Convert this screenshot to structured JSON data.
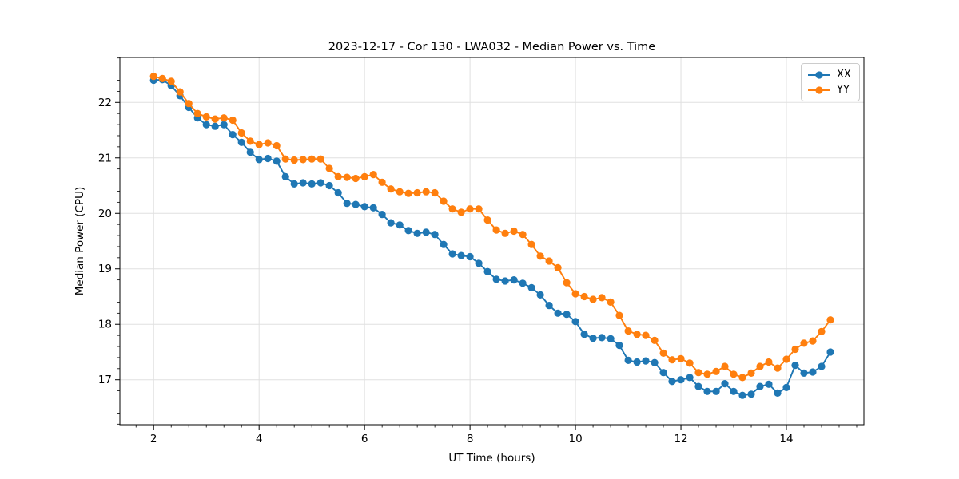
{
  "figure": {
    "title": "2023-12-17 - Cor 130 - LWA032 - Median Power vs. Time",
    "xlabel": "UT Time (hours)",
    "ylabel": "Median Power (CPU)"
  },
  "legend": {
    "position": "upper right",
    "items": [
      {
        "label": "XX",
        "color": "#1f77b4"
      },
      {
        "label": "YY",
        "color": "#ff7f0e"
      }
    ]
  },
  "chart_data": {
    "type": "line",
    "title": "2023-12-17 - Cor 130 - LWA032 - Median Power vs. Time",
    "xlabel": "UT Time (hours)",
    "ylabel": "Median Power (CPU)",
    "xlim": [
      1.36,
      15.47
    ],
    "ylim": [
      16.19,
      22.81
    ],
    "xticks": [
      2,
      4,
      6,
      8,
      10,
      12,
      14
    ],
    "yticks": [
      17,
      18,
      19,
      20,
      21,
      22
    ],
    "x_minor_step": 0.3333,
    "y_minor_step": 0.2,
    "grid": true,
    "grid_color": "#e0e0e0",
    "legend_position": "upper right",
    "marker": "circle",
    "marker_radius": 4.6,
    "line_width": 1.9,
    "x": [
      2.0,
      2.167,
      2.333,
      2.5,
      2.667,
      2.833,
      3.0,
      3.167,
      3.333,
      3.5,
      3.667,
      3.833,
      4.0,
      4.167,
      4.333,
      4.5,
      4.667,
      4.833,
      5.0,
      5.167,
      5.333,
      5.5,
      5.667,
      5.833,
      6.0,
      6.167,
      6.333,
      6.5,
      6.667,
      6.833,
      7.0,
      7.167,
      7.333,
      7.5,
      7.667,
      7.833,
      8.0,
      8.167,
      8.333,
      8.5,
      8.667,
      8.833,
      9.0,
      9.167,
      9.333,
      9.5,
      9.667,
      9.833,
      10.0,
      10.167,
      10.333,
      10.5,
      10.667,
      10.833,
      11.0,
      11.167,
      11.333,
      11.5,
      11.667,
      11.833,
      12.0,
      12.167,
      12.333,
      12.5,
      12.667,
      12.833,
      13.0,
      13.167,
      13.333,
      13.5,
      13.667,
      13.833,
      14.0,
      14.167,
      14.333,
      14.5,
      14.667,
      14.833
    ],
    "series": [
      {
        "name": "XX",
        "color": "#1f77b4",
        "values": [
          22.4,
          22.41,
          22.3,
          22.12,
          21.91,
          21.72,
          21.6,
          21.57,
          21.6,
          21.42,
          21.28,
          21.1,
          20.97,
          20.99,
          20.94,
          20.66,
          20.53,
          20.55,
          20.53,
          20.55,
          20.5,
          20.37,
          20.18,
          20.16,
          20.12,
          20.1,
          19.98,
          19.83,
          19.79,
          19.69,
          19.64,
          19.66,
          19.62,
          19.44,
          19.27,
          19.24,
          19.22,
          19.1,
          18.95,
          18.81,
          18.78,
          18.8,
          18.74,
          18.66,
          18.53,
          18.34,
          18.2,
          18.18,
          18.05,
          17.82,
          17.75,
          17.76,
          17.74,
          17.62,
          17.35,
          17.32,
          17.34,
          17.31,
          17.13,
          16.97,
          17.0,
          17.04,
          16.88,
          16.79,
          16.79,
          16.93,
          16.79,
          16.72,
          16.74,
          16.88,
          16.92,
          16.76,
          16.86,
          17.26,
          17.12,
          17.14,
          17.24,
          17.5
        ]
      },
      {
        "name": "YY",
        "color": "#ff7f0e",
        "values": [
          22.47,
          22.43,
          22.38,
          22.19,
          21.98,
          21.8,
          21.74,
          21.7,
          21.72,
          21.68,
          21.45,
          21.3,
          21.24,
          21.27,
          21.22,
          20.98,
          20.96,
          20.97,
          20.98,
          20.98,
          20.81,
          20.66,
          20.65,
          20.63,
          20.66,
          20.7,
          20.56,
          20.44,
          20.39,
          20.36,
          20.37,
          20.39,
          20.37,
          20.22,
          20.08,
          20.02,
          20.08,
          20.08,
          19.88,
          19.7,
          19.64,
          19.68,
          19.62,
          19.44,
          19.23,
          19.14,
          19.02,
          18.75,
          18.55,
          18.5,
          18.45,
          18.48,
          18.4,
          18.16,
          17.88,
          17.82,
          17.8,
          17.71,
          17.48,
          17.36,
          17.38,
          17.3,
          17.13,
          17.1,
          17.15,
          17.24,
          17.1,
          17.04,
          17.12,
          17.24,
          17.32,
          17.21,
          17.37,
          17.55,
          17.66,
          17.7,
          17.87,
          18.08
        ]
      }
    ]
  }
}
